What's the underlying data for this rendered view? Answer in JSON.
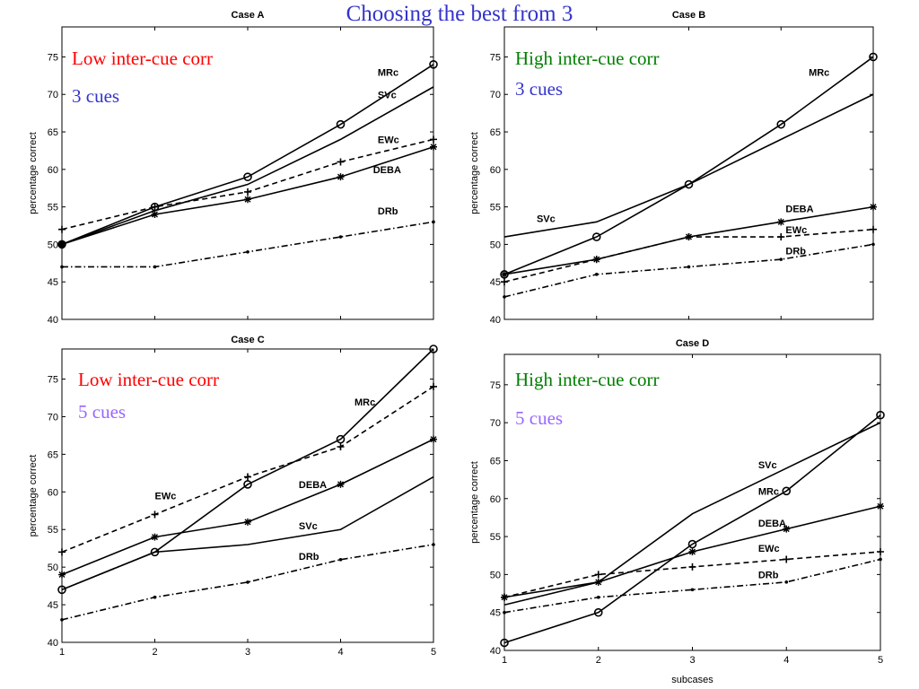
{
  "slide": {
    "title": "Choosing the best from 3"
  },
  "colors": {
    "red": "#ff0000",
    "green": "#007f00",
    "blue": "#3333cc",
    "purple": "#9966ff"
  },
  "chart_data": [
    {
      "type": "line",
      "title": "Case A",
      "xlabel": "",
      "ylabel": "percentage correct",
      "x": [
        1,
        2,
        3,
        4,
        5
      ],
      "xlim": [
        1,
        5
      ],
      "ylim": [
        40,
        79
      ],
      "yticks": [
        40,
        45,
        50,
        55,
        60,
        65,
        70,
        75
      ],
      "xticks": [],
      "grid": false,
      "annotations": [
        {
          "text": "Low inter-cue corr",
          "color": "red"
        },
        {
          "text": "3 cues",
          "color": "blue"
        }
      ],
      "series": [
        {
          "name": "MRc",
          "style": "solid",
          "marker": "circle",
          "values": [
            50,
            55,
            59,
            66,
            74
          ],
          "label_at": [
            4.4,
            72.5
          ]
        },
        {
          "name": "SVc",
          "style": "solid",
          "marker": "none",
          "values": [
            50,
            54.5,
            58,
            64,
            71
          ],
          "label_at": [
            4.4,
            69.5
          ]
        },
        {
          "name": "EWc",
          "style": "dashed",
          "marker": "plus",
          "values": [
            52,
            55,
            57,
            61,
            64
          ],
          "label_at": [
            4.4,
            63.5
          ]
        },
        {
          "name": "DEBA",
          "style": "solid",
          "marker": "star",
          "values": [
            50,
            54,
            56,
            59,
            63
          ],
          "label_at": [
            4.35,
            59.5
          ]
        },
        {
          "name": "DRb",
          "style": "dashdot",
          "marker": "dot",
          "values": [
            47,
            47,
            49,
            51,
            53
          ],
          "label_at": [
            4.4,
            54
          ]
        }
      ]
    },
    {
      "type": "line",
      "title": "Case B",
      "xlabel": "",
      "ylabel": "percentage correct",
      "x": [
        1,
        2,
        3,
        4,
        5
      ],
      "xlim": [
        1,
        5
      ],
      "ylim": [
        40,
        79
      ],
      "yticks": [
        40,
        45,
        50,
        55,
        60,
        65,
        70,
        75
      ],
      "xticks": [],
      "grid": false,
      "annotations": [
        {
          "text": "High inter-cue corr",
          "color": "green"
        },
        {
          "text": "3 cues",
          "color": "blue"
        }
      ],
      "series": [
        {
          "name": "MRc",
          "style": "solid",
          "marker": "circle",
          "values": [
            46,
            51,
            58,
            66,
            75
          ],
          "label_at": [
            4.3,
            72.5
          ]
        },
        {
          "name": "SVc",
          "style": "solid",
          "marker": "none",
          "values": [
            51,
            53,
            58,
            64,
            70
          ],
          "label_at": [
            1.35,
            53
          ]
        },
        {
          "name": "DEBA",
          "style": "solid",
          "marker": "star",
          "values": [
            46,
            48,
            51,
            53,
            55
          ],
          "label_at": [
            4.05,
            54.3
          ]
        },
        {
          "name": "EWc",
          "style": "dashed",
          "marker": "plus",
          "values": [
            45,
            48,
            51,
            51,
            52
          ],
          "label_at": [
            4.05,
            51.5
          ]
        },
        {
          "name": "DRb",
          "style": "dashdot",
          "marker": "dot",
          "values": [
            43,
            46,
            47,
            48,
            50
          ],
          "label_at": [
            4.05,
            48.7
          ]
        }
      ]
    },
    {
      "type": "line",
      "title": "Case C",
      "xlabel": "",
      "ylabel": "percentage correct",
      "x": [
        1,
        2,
        3,
        4,
        5
      ],
      "xlim": [
        1,
        5
      ],
      "ylim": [
        40,
        79
      ],
      "yticks": [
        40,
        45,
        50,
        55,
        60,
        65,
        70,
        75
      ],
      "xticks": [
        1,
        2,
        3,
        4,
        5
      ],
      "grid": false,
      "annotations": [
        {
          "text": "Low inter-cue corr",
          "color": "red"
        },
        {
          "text": "5 cues",
          "color": "purple"
        }
      ],
      "series": [
        {
          "name": "MRc",
          "style": "solid",
          "marker": "circle",
          "values": [
            47,
            52,
            61,
            67,
            79
          ],
          "label_at": [
            4.15,
            71.5
          ]
        },
        {
          "name": "EWc",
          "style": "dashed",
          "marker": "plus",
          "values": [
            52,
            57,
            62,
            66,
            74
          ],
          "label_at": [
            2.0,
            59
          ]
        },
        {
          "name": "DEBA",
          "style": "solid",
          "marker": "star",
          "values": [
            49,
            54,
            56,
            61,
            67
          ],
          "label_at": [
            3.55,
            60.5
          ]
        },
        {
          "name": "SVc",
          "style": "solid",
          "marker": "none",
          "values": [
            47,
            52,
            53,
            55,
            62
          ],
          "label_at": [
            3.55,
            55
          ]
        },
        {
          "name": "DRb",
          "style": "dashdot",
          "marker": "dot",
          "values": [
            43,
            46,
            48,
            51,
            53
          ],
          "label_at": [
            3.55,
            51
          ]
        }
      ]
    },
    {
      "type": "line",
      "title": "Case D",
      "xlabel": "subcases",
      "ylabel": "percentage correct",
      "x": [
        1,
        2,
        3,
        4,
        5
      ],
      "xlim": [
        1,
        5
      ],
      "ylim": [
        40,
        79
      ],
      "yticks": [
        40,
        45,
        50,
        55,
        60,
        65,
        70,
        75
      ],
      "xticks": [
        1,
        2,
        3,
        4,
        5
      ],
      "grid": false,
      "annotations": [
        {
          "text": "High inter-cue corr",
          "color": "green"
        },
        {
          "text": "5 cues",
          "color": "purple"
        }
      ],
      "series": [
        {
          "name": "SVc",
          "style": "solid",
          "marker": "none",
          "values": [
            46,
            49,
            58,
            64,
            70
          ],
          "label_at": [
            3.7,
            64
          ]
        },
        {
          "name": "MRc",
          "style": "solid",
          "marker": "circle",
          "values": [
            41,
            45,
            54,
            61,
            71
          ],
          "label_at": [
            3.7,
            60.5
          ]
        },
        {
          "name": "DEBA",
          "style": "solid",
          "marker": "star",
          "values": [
            47,
            49,
            53,
            56,
            59
          ],
          "label_at": [
            3.7,
            56.3
          ]
        },
        {
          "name": "EWc",
          "style": "dashed",
          "marker": "plus",
          "values": [
            47,
            50,
            51,
            52,
            53
          ],
          "label_at": [
            3.7,
            53
          ]
        },
        {
          "name": "DRb",
          "style": "dashdot",
          "marker": "dot",
          "values": [
            45,
            47,
            48,
            49,
            52
          ],
          "label_at": [
            3.7,
            49.5
          ]
        }
      ]
    }
  ],
  "shared_xlabel": "subcases"
}
